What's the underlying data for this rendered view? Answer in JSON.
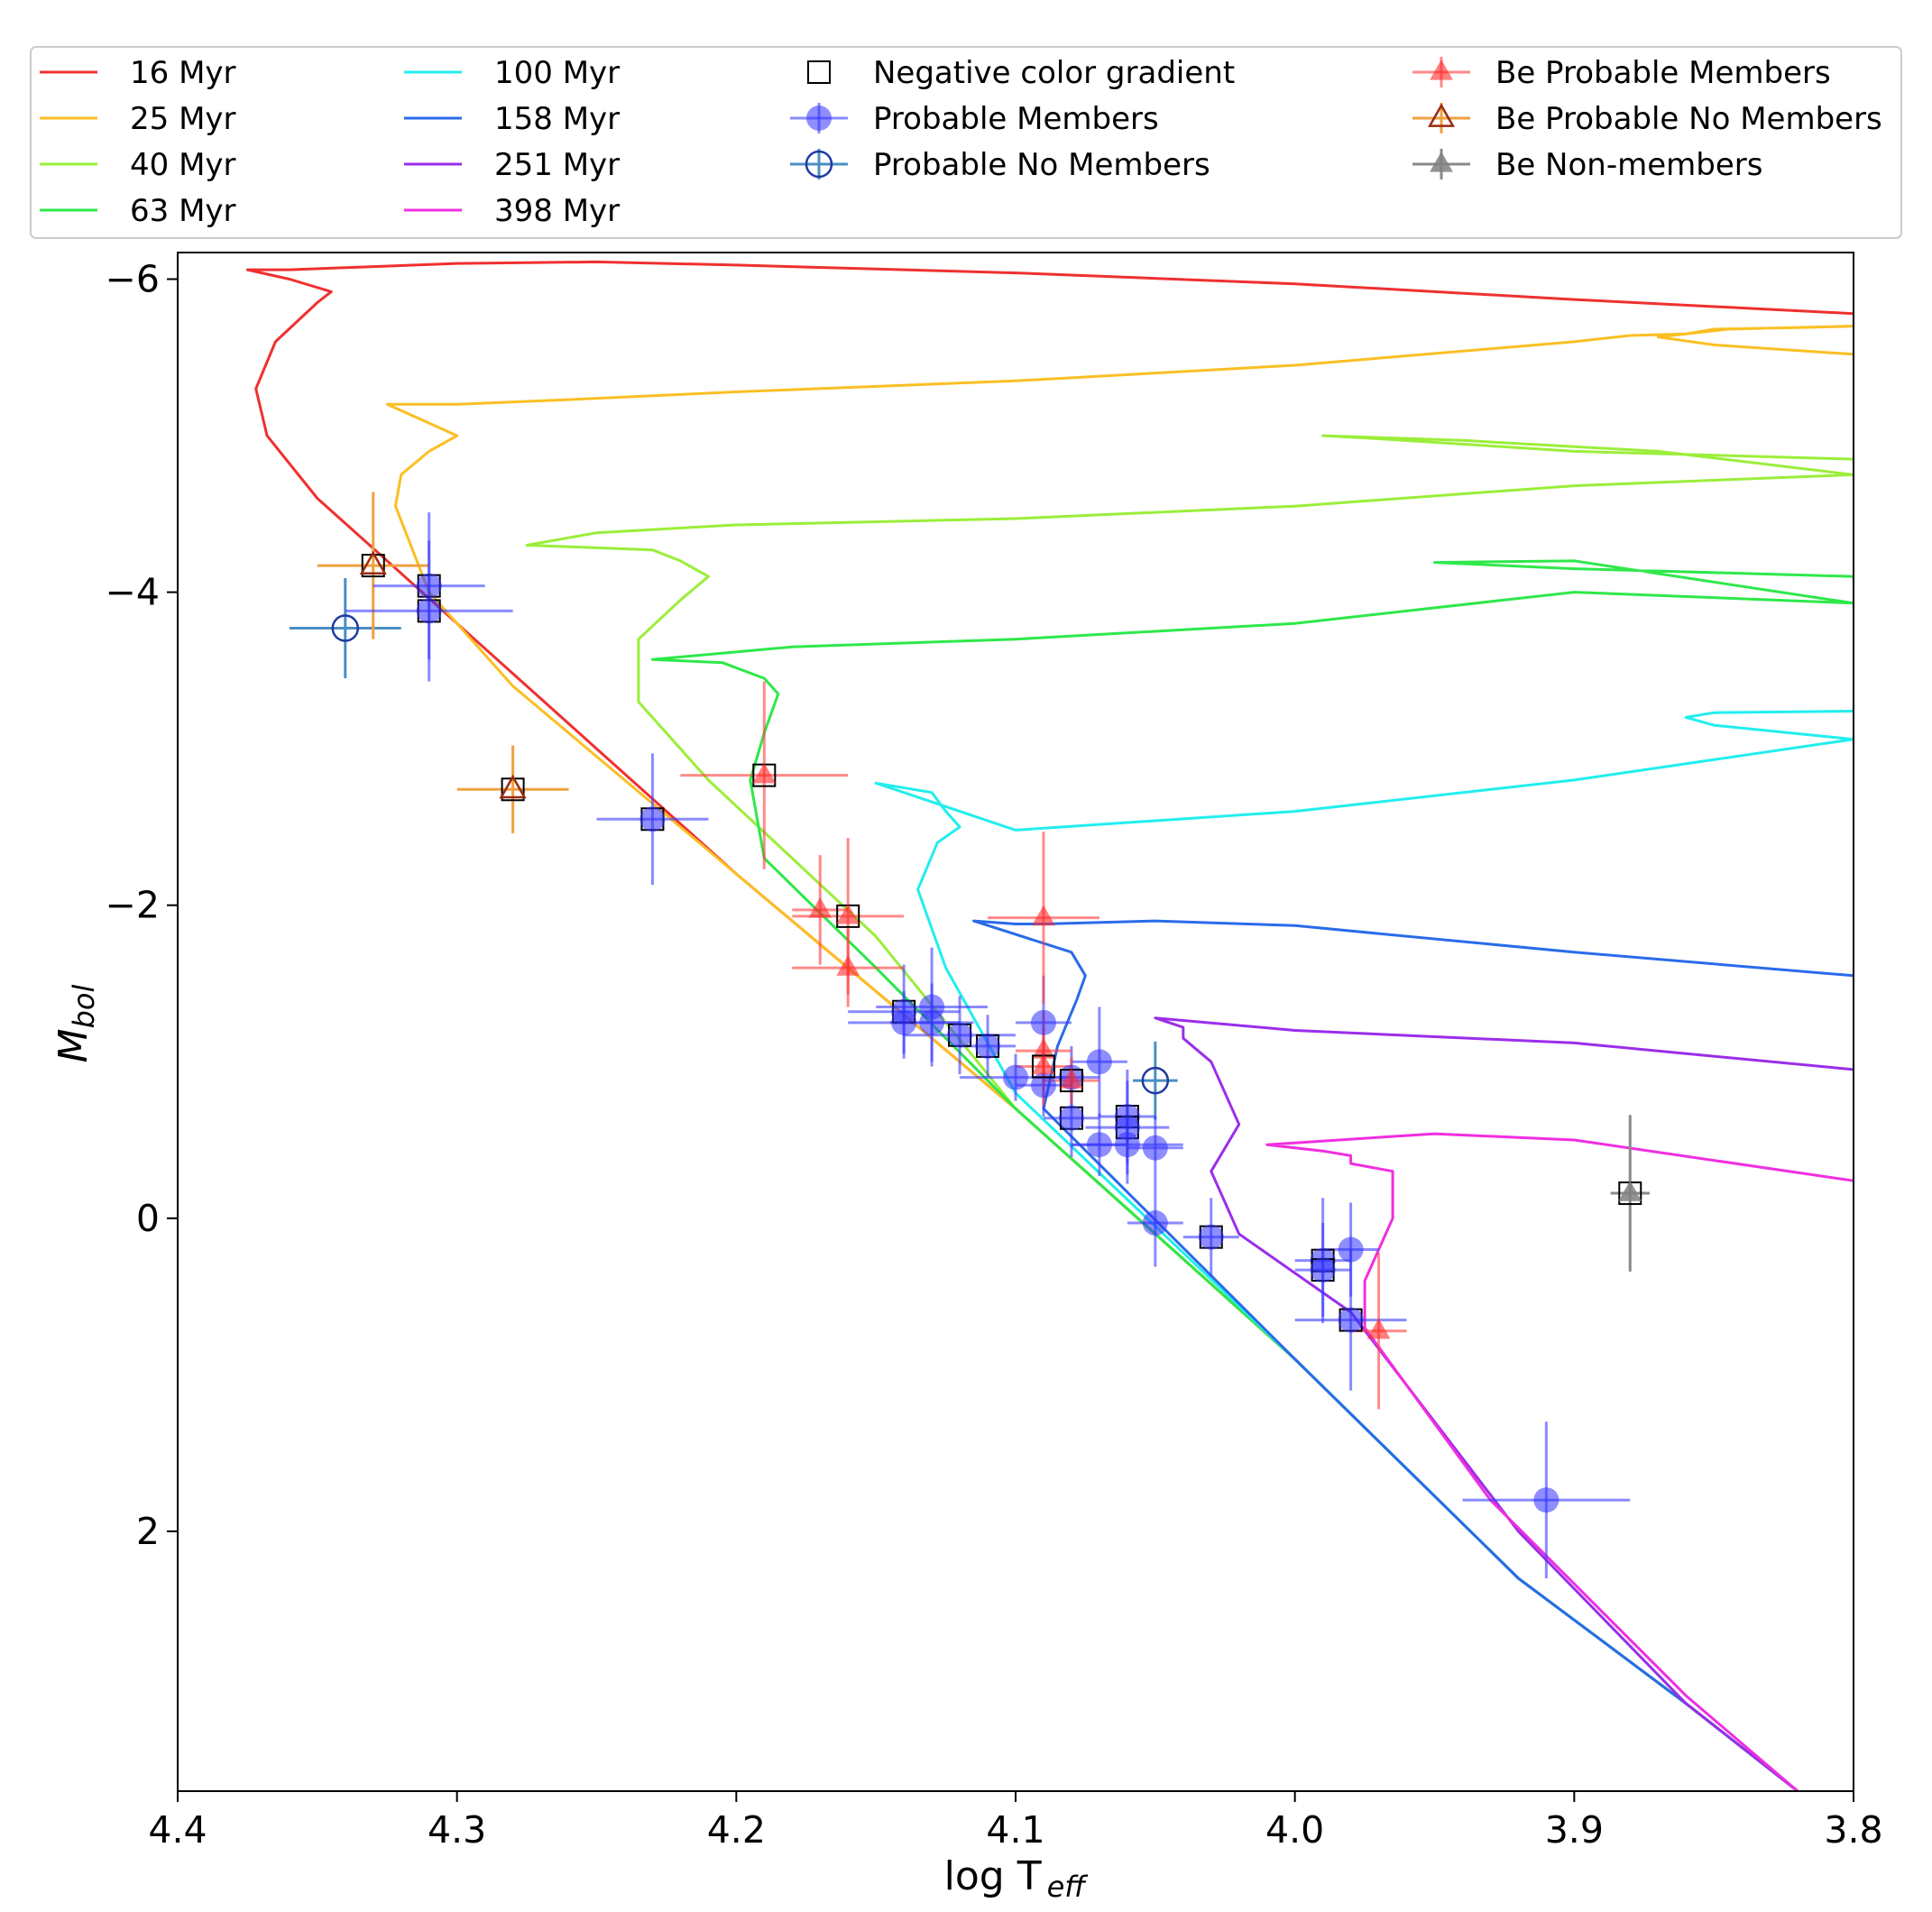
{
  "chart_data": {
    "type": "scatter",
    "title": "",
    "xlabel": {
      "main": "log T",
      "sub": "eff"
    },
    "ylabel": {
      "main": "M",
      "sub": "bol"
    },
    "xlim": [
      4.4,
      3.8
    ],
    "ylim": [
      3.66,
      -6.17
    ],
    "xticks": [
      4.4,
      4.3,
      4.2,
      4.1,
      4.0,
      3.9,
      3.8
    ],
    "xtick_labels": [
      "4.4",
      "4.3",
      "4.2",
      "4.1",
      "4.0",
      "3.9",
      "3.8"
    ],
    "yticks": [
      -6,
      -4,
      -2,
      0,
      2
    ],
    "ytick_labels": [
      "−6",
      "−4",
      "−2",
      "0",
      "2"
    ],
    "grid": false,
    "legend": {
      "placement": "top",
      "entries": [
        {
          "label": "16 Myr",
          "kind": "line",
          "color": "#f03030"
        },
        {
          "label": "25 Myr",
          "kind": "line",
          "color": "#fbbf24"
        },
        {
          "label": "40 Myr",
          "kind": "line",
          "color": "#9bee3a"
        },
        {
          "label": "63 Myr",
          "kind": "line",
          "color": "#2ee84a"
        },
        {
          "label": "100 Myr",
          "kind": "line",
          "color": "#22eeee"
        },
        {
          "label": "158 Myr",
          "kind": "line",
          "color": "#2a6bea"
        },
        {
          "label": "251 Myr",
          "kind": "line",
          "color": "#9a2eea"
        },
        {
          "label": "398 Myr",
          "kind": "line",
          "color": "#f02ee0"
        },
        {
          "label": "Negative color gradient",
          "kind": "square"
        },
        {
          "label": "Probable Members",
          "kind": "circle-filled",
          "color": "#3030ff"
        },
        {
          "label": "Probable No Members",
          "kind": "circle-open",
          "color": "#1f3aa0"
        },
        {
          "label": "Be Probable Members",
          "kind": "triangle-filled",
          "color": "#ff3030"
        },
        {
          "label": "Be Probable No Members",
          "kind": "triangle-open",
          "color": "#e06020"
        },
        {
          "label": "Be Non-members",
          "kind": "triangle-filled",
          "color": "#808080"
        }
      ]
    },
    "isochrones": [
      {
        "name": "16 Myr",
        "color": "#f03030",
        "points": [
          [
            3.8,
            -5.78
          ],
          [
            3.9,
            -5.87
          ],
          [
            4.0,
            -5.97
          ],
          [
            4.1,
            -6.04
          ],
          [
            4.2,
            -6.09
          ],
          [
            4.25,
            -6.11
          ],
          [
            4.3,
            -6.1
          ],
          [
            4.36,
            -6.06
          ],
          [
            4.375,
            -6.06
          ],
          [
            4.36,
            -6.0
          ],
          [
            4.345,
            -5.92
          ],
          [
            4.35,
            -5.85
          ],
          [
            4.365,
            -5.6
          ],
          [
            4.372,
            -5.3
          ],
          [
            4.368,
            -5.0
          ],
          [
            4.35,
            -4.6
          ],
          [
            4.3,
            -3.8
          ],
          [
            4.25,
            -3.0
          ],
          [
            4.2,
            -2.2
          ],
          [
            4.1,
            -0.7
          ],
          [
            4.0,
            0.9
          ],
          [
            3.92,
            2.3
          ],
          [
            3.86,
            3.1
          ],
          [
            3.82,
            3.66
          ]
        ]
      },
      {
        "name": "25 Myr",
        "color": "#fbbf24",
        "points": [
          [
            3.8,
            -5.52
          ],
          [
            3.85,
            -5.58
          ],
          [
            3.87,
            -5.63
          ],
          [
            3.845,
            -5.68
          ],
          [
            3.8,
            -5.7
          ],
          [
            3.82,
            -5.69
          ],
          [
            3.85,
            -5.68
          ],
          [
            3.86,
            -5.65
          ],
          [
            3.88,
            -5.64
          ],
          [
            3.9,
            -5.6
          ],
          [
            4.0,
            -5.45
          ],
          [
            4.1,
            -5.35
          ],
          [
            4.2,
            -5.28
          ],
          [
            4.26,
            -5.23
          ],
          [
            4.3,
            -5.2
          ],
          [
            4.325,
            -5.2
          ],
          [
            4.3,
            -5.0
          ],
          [
            4.31,
            -4.9
          ],
          [
            4.32,
            -4.75
          ],
          [
            4.322,
            -4.55
          ],
          [
            4.31,
            -4.0
          ],
          [
            4.28,
            -3.4
          ],
          [
            4.2,
            -2.2
          ],
          [
            4.1,
            -0.7
          ],
          [
            4.0,
            0.9
          ],
          [
            3.92,
            2.3
          ],
          [
            3.86,
            3.1
          ],
          [
            3.82,
            3.66
          ]
        ]
      },
      {
        "name": "40 Myr",
        "color": "#9bee3a",
        "points": [
          [
            3.8,
            -4.85
          ],
          [
            3.9,
            -4.9
          ],
          [
            3.97,
            -4.98
          ],
          [
            3.99,
            -5.0
          ],
          [
            3.94,
            -4.97
          ],
          [
            3.87,
            -4.9
          ],
          [
            3.8,
            -4.75
          ],
          [
            3.9,
            -4.68
          ],
          [
            4.0,
            -4.55
          ],
          [
            4.1,
            -4.47
          ],
          [
            4.2,
            -4.43
          ],
          [
            4.25,
            -4.38
          ],
          [
            4.275,
            -4.3
          ],
          [
            4.23,
            -4.27
          ],
          [
            4.22,
            -4.2
          ],
          [
            4.21,
            -4.1
          ],
          [
            4.22,
            -3.95
          ],
          [
            4.235,
            -3.7
          ],
          [
            4.235,
            -3.3
          ],
          [
            4.21,
            -2.8
          ],
          [
            4.15,
            -1.8
          ],
          [
            4.1,
            -0.7
          ],
          [
            4.0,
            0.9
          ],
          [
            3.92,
            2.3
          ],
          [
            3.86,
            3.1
          ],
          [
            3.82,
            3.66
          ]
        ]
      },
      {
        "name": "63 Myr",
        "color": "#2ee84a",
        "points": [
          [
            3.8,
            -4.1
          ],
          [
            3.9,
            -4.15
          ],
          [
            3.95,
            -4.19
          ],
          [
            3.9,
            -4.2
          ],
          [
            3.8,
            -3.93
          ],
          [
            3.9,
            -4.0
          ],
          [
            4.0,
            -3.8
          ],
          [
            4.1,
            -3.7
          ],
          [
            4.18,
            -3.65
          ],
          [
            4.23,
            -3.57
          ],
          [
            4.205,
            -3.55
          ],
          [
            4.19,
            -3.45
          ],
          [
            4.185,
            -3.35
          ],
          [
            4.19,
            -3.1
          ],
          [
            4.195,
            -2.8
          ],
          [
            4.19,
            -2.3
          ],
          [
            4.15,
            -1.6
          ],
          [
            4.1,
            -0.7
          ],
          [
            4.0,
            0.9
          ],
          [
            3.92,
            2.3
          ],
          [
            3.86,
            3.1
          ],
          [
            3.82,
            3.66
          ]
        ]
      },
      {
        "name": "100 Myr",
        "color": "#22eeee",
        "points": [
          [
            3.8,
            -3.24
          ],
          [
            3.85,
            -3.23
          ],
          [
            3.86,
            -3.2
          ],
          [
            3.85,
            -3.15
          ],
          [
            3.8,
            -3.06
          ],
          [
            3.9,
            -2.8
          ],
          [
            4.0,
            -2.6
          ],
          [
            4.1,
            -2.48
          ],
          [
            4.15,
            -2.78
          ],
          [
            4.13,
            -2.72
          ],
          [
            4.125,
            -2.6
          ],
          [
            4.12,
            -2.5
          ],
          [
            4.128,
            -2.4
          ],
          [
            4.135,
            -2.1
          ],
          [
            4.125,
            -1.6
          ],
          [
            4.1,
            -0.8
          ],
          [
            4.0,
            0.9
          ],
          [
            3.92,
            2.3
          ],
          [
            3.86,
            3.1
          ],
          [
            3.82,
            3.66
          ]
        ]
      },
      {
        "name": "158 Myr",
        "color": "#2a6bea",
        "points": [
          [
            3.8,
            -1.55
          ],
          [
            3.9,
            -1.7
          ],
          [
            4.0,
            -1.87
          ],
          [
            4.05,
            -1.9
          ],
          [
            4.09,
            -1.88
          ],
          [
            4.1,
            -1.88
          ],
          [
            4.115,
            -1.9
          ],
          [
            4.08,
            -1.7
          ],
          [
            4.075,
            -1.55
          ],
          [
            4.078,
            -1.4
          ],
          [
            4.085,
            -1.1
          ],
          [
            4.09,
            -0.7
          ],
          [
            4.0,
            0.9
          ],
          [
            3.92,
            2.3
          ],
          [
            3.86,
            3.1
          ],
          [
            3.82,
            3.66
          ]
        ]
      },
      {
        "name": "251 Myr",
        "color": "#9a2eea",
        "points": [
          [
            3.8,
            -0.95
          ],
          [
            3.9,
            -1.12
          ],
          [
            4.0,
            -1.2
          ],
          [
            4.05,
            -1.28
          ],
          [
            4.04,
            -1.22
          ],
          [
            4.04,
            -1.15
          ],
          [
            4.03,
            -1.0
          ],
          [
            4.02,
            -0.6
          ],
          [
            4.03,
            -0.3
          ],
          [
            4.02,
            0.1
          ],
          [
            3.98,
            0.6
          ],
          [
            3.92,
            2.0
          ],
          [
            3.86,
            3.1
          ],
          [
            3.82,
            3.66
          ]
        ]
      },
      {
        "name": "398 Myr",
        "color": "#f02ee0",
        "points": [
          [
            3.8,
            -0.24
          ],
          [
            3.9,
            -0.5
          ],
          [
            3.95,
            -0.54
          ],
          [
            4.01,
            -0.47
          ],
          [
            3.99,
            -0.43
          ],
          [
            3.98,
            -0.4
          ],
          [
            3.98,
            -0.35
          ],
          [
            3.965,
            -0.3
          ],
          [
            3.965,
            0.0
          ],
          [
            3.975,
            0.4
          ],
          [
            3.975,
            0.7
          ],
          [
            3.93,
            1.8
          ],
          [
            3.86,
            3.05
          ],
          [
            3.82,
            3.66
          ]
        ]
      }
    ],
    "points": [
      {
        "group": "Probable No Members",
        "x": 4.34,
        "y": -3.77,
        "xerr": 0.02,
        "yerr": 0.32,
        "neg_gradient": false
      },
      {
        "group": "Probable No Members",
        "x": 4.05,
        "y": -0.88,
        "xerr": 0.008,
        "yerr": 0.25,
        "neg_gradient": false
      },
      {
        "group": "Be Probable No Members",
        "x": 4.33,
        "y": -4.17,
        "xerr": 0.02,
        "yerr": 0.47,
        "neg_gradient": true
      },
      {
        "group": "Be Probable No Members",
        "x": 4.28,
        "y": -2.74,
        "xerr": 0.02,
        "yerr": 0.28,
        "neg_gradient": true
      },
      {
        "group": "Probable Members",
        "x": 4.31,
        "y": -4.04,
        "xerr": 0.02,
        "yerr": 0.47,
        "neg_gradient": true
      },
      {
        "group": "Probable Members",
        "x": 4.31,
        "y": -3.88,
        "xerr": 0.03,
        "yerr": 0.45,
        "neg_gradient": true
      },
      {
        "group": "Probable Members",
        "x": 4.23,
        "y": -2.55,
        "xerr": 0.02,
        "yerr": 0.42,
        "neg_gradient": true
      },
      {
        "group": "Probable Members",
        "x": 4.14,
        "y": -1.32,
        "xerr": 0.02,
        "yerr": 0.3,
        "neg_gradient": true
      },
      {
        "group": "Probable Members",
        "x": 4.14,
        "y": -1.25,
        "xerr": 0.02,
        "yerr": 0.2,
        "neg_gradient": false
      },
      {
        "group": "Probable Members",
        "x": 4.13,
        "y": -1.35,
        "xerr": 0.02,
        "yerr": 0.38,
        "neg_gradient": false
      },
      {
        "group": "Probable Members",
        "x": 4.13,
        "y": -1.25,
        "xerr": 0.015,
        "yerr": 0.25,
        "neg_gradient": false
      },
      {
        "group": "Probable Members",
        "x": 4.12,
        "y": -1.17,
        "xerr": 0.02,
        "yerr": 0.25,
        "neg_gradient": true
      },
      {
        "group": "Probable Members",
        "x": 4.11,
        "y": -1.1,
        "xerr": 0.01,
        "yerr": 0.2,
        "neg_gradient": true
      },
      {
        "group": "Probable Members",
        "x": 4.1,
        "y": -0.9,
        "xerr": 0.02,
        "yerr": 0.15,
        "neg_gradient": false
      },
      {
        "group": "Probable Members",
        "x": 4.09,
        "y": -1.25,
        "xerr": 0.01,
        "yerr": 0.3,
        "neg_gradient": false
      },
      {
        "group": "Probable Members",
        "x": 4.09,
        "y": -0.85,
        "xerr": 0.01,
        "yerr": 0.2,
        "neg_gradient": false
      },
      {
        "group": "Probable Members",
        "x": 4.08,
        "y": -0.9,
        "xerr": 0.01,
        "yerr": 0.2,
        "neg_gradient": false
      },
      {
        "group": "Probable Members",
        "x": 4.08,
        "y": -0.64,
        "xerr": 0.01,
        "yerr": 0.25,
        "neg_gradient": true
      },
      {
        "group": "Probable Members",
        "x": 4.07,
        "y": -1.0,
        "xerr": 0.01,
        "yerr": 0.35,
        "neg_gradient": false
      },
      {
        "group": "Probable Members",
        "x": 4.07,
        "y": -0.47,
        "xerr": 0.01,
        "yerr": 0.2,
        "neg_gradient": false
      },
      {
        "group": "Probable Members",
        "x": 4.06,
        "y": -0.65,
        "xerr": 0.01,
        "yerr": 0.3,
        "neg_gradient": true
      },
      {
        "group": "Probable Members",
        "x": 4.06,
        "y": -0.58,
        "xerr": 0.015,
        "yerr": 0.3,
        "neg_gradient": true
      },
      {
        "group": "Probable Members",
        "x": 4.06,
        "y": -0.47,
        "xerr": 0.02,
        "yerr": 0.25,
        "neg_gradient": false
      },
      {
        "group": "Probable Members",
        "x": 4.05,
        "y": -0.45,
        "xerr": 0.01,
        "yerr": 0.2,
        "neg_gradient": false
      },
      {
        "group": "Probable Members",
        "x": 4.05,
        "y": 0.03,
        "xerr": 0.01,
        "yerr": 0.28,
        "neg_gradient": false
      },
      {
        "group": "Probable Members",
        "x": 4.03,
        "y": 0.12,
        "xerr": 0.01,
        "yerr": 0.25,
        "neg_gradient": true
      },
      {
        "group": "Probable Members",
        "x": 3.99,
        "y": 0.27,
        "xerr": 0.01,
        "yerr": 0.4,
        "neg_gradient": true
      },
      {
        "group": "Probable Members",
        "x": 3.99,
        "y": 0.33,
        "xerr": 0.01,
        "yerr": 0.3,
        "neg_gradient": true
      },
      {
        "group": "Probable Members",
        "x": 3.98,
        "y": 0.2,
        "xerr": 0.01,
        "yerr": 0.3,
        "neg_gradient": false
      },
      {
        "group": "Probable Members",
        "x": 3.98,
        "y": 0.65,
        "xerr": 0.02,
        "yerr": 0.45,
        "neg_gradient": true
      },
      {
        "group": "Probable Members",
        "x": 3.91,
        "y": 1.8,
        "xerr": 0.03,
        "yerr": 0.5,
        "neg_gradient": false
      },
      {
        "group": "Be Probable Members",
        "x": 4.19,
        "y": -2.83,
        "xerr": 0.03,
        "yerr": 0.6,
        "neg_gradient": true
      },
      {
        "group": "Be Probable Members",
        "x": 4.17,
        "y": -1.97,
        "xerr": 0.01,
        "yerr": 0.35,
        "neg_gradient": false
      },
      {
        "group": "Be Probable Members",
        "x": 4.16,
        "y": -1.93,
        "xerr": 0.02,
        "yerr": 0.5,
        "neg_gradient": true
      },
      {
        "group": "Be Probable Members",
        "x": 4.16,
        "y": -1.6,
        "xerr": 0.02,
        "yerr": 0.25,
        "neg_gradient": false
      },
      {
        "group": "Be Probable Members",
        "x": 4.09,
        "y": -1.92,
        "xerr": 0.02,
        "yerr": 0.55,
        "neg_gradient": false
      },
      {
        "group": "Be Probable Members",
        "x": 4.09,
        "y": -1.07,
        "xerr": 0.01,
        "yerr": 0.25,
        "neg_gradient": false
      },
      {
        "group": "Be Probable Members",
        "x": 4.09,
        "y": -0.97,
        "xerr": 0.01,
        "yerr": 0.25,
        "neg_gradient": true
      },
      {
        "group": "Be Probable Members",
        "x": 4.08,
        "y": -0.88,
        "xerr": 0.01,
        "yerr": 0.15,
        "neg_gradient": true
      },
      {
        "group": "Be Probable Members",
        "x": 3.97,
        "y": 0.72,
        "xerr": 0.01,
        "yerr": 0.5,
        "neg_gradient": false
      },
      {
        "group": "Be Non-members",
        "x": 3.88,
        "y": -0.16,
        "xerr": 0.007,
        "yerr": 0.5,
        "neg_gradient": true
      }
    ]
  }
}
